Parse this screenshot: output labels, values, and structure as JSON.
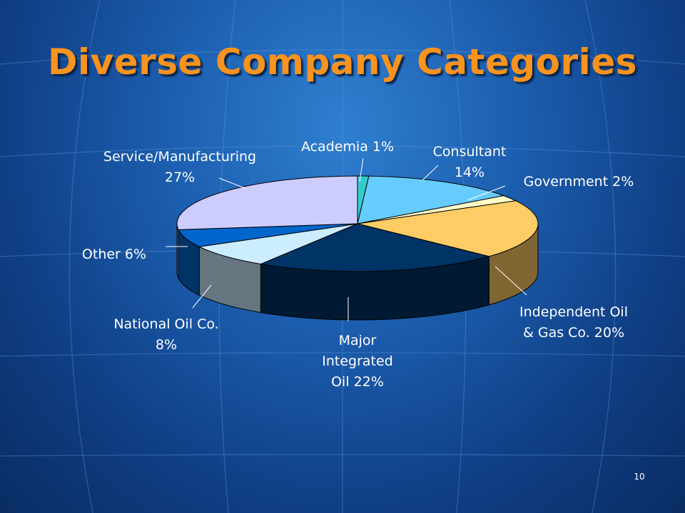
{
  "slide": {
    "title": "Diverse Company Categories",
    "page_number": "10"
  },
  "chart_data": {
    "type": "pie",
    "title": "",
    "units": "%",
    "start_angle_deg": -90,
    "slices": [
      {
        "name": "Academia",
        "value": 1,
        "label_lines": [
          "Academia 1%"
        ],
        "color": "#33cccc"
      },
      {
        "name": "Consultant",
        "value": 14,
        "label_lines": [
          "Consultant",
          "14%"
        ],
        "color": "#66ccff"
      },
      {
        "name": "Government",
        "value": 2,
        "label_lines": [
          "Government 2%"
        ],
        "color": "#ffffcc"
      },
      {
        "name": "Independent Oil & Gas Co.",
        "value": 20,
        "label_lines": [
          "Independent Oil",
          "& Gas Co. 20%"
        ],
        "color": "#ffcc66"
      },
      {
        "name": "Major Integrated Oil",
        "value": 22,
        "label_lines": [
          "Major",
          "Integrated",
          "Oil 22%"
        ],
        "color": "#003366"
      },
      {
        "name": "National Oil Co.",
        "value": 8,
        "label_lines": [
          "National Oil Co.",
          "8%"
        ],
        "color": "#ccecff"
      },
      {
        "name": "Other",
        "value": 6,
        "label_lines": [
          "Other 6%"
        ],
        "color": "#0066cc"
      },
      {
        "name": "Service/Manufacturing",
        "value": 27,
        "label_lines": [
          "Service/Manufacturing",
          "27%"
        ],
        "color": "#ccccff"
      }
    ]
  }
}
